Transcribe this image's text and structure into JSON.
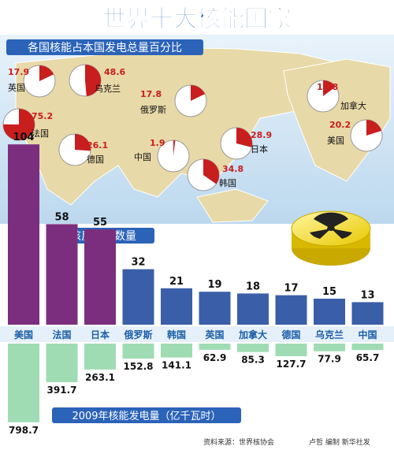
{
  "title": "世界十大核能国家",
  "share_section": {
    "title": "各国核能占本国发电总量百分比",
    "items": [
      {
        "country": "英国",
        "value": 17.9
      },
      {
        "country": "乌克兰",
        "value": 48.6
      },
      {
        "country": "俄罗斯",
        "value": 17.8
      },
      {
        "country": "加拿大",
        "value": 14.8
      },
      {
        "country": "法国",
        "value": 75.2
      },
      {
        "country": "德国",
        "value": 26.1
      },
      {
        "country": "中国",
        "value": 1.9
      },
      {
        "country": "日本",
        "value": 28.9
      },
      {
        "country": "韩国",
        "value": 34.8
      },
      {
        "country": "美国",
        "value": 20.2
      }
    ]
  },
  "chart_data": [
    {
      "type": "bar",
      "title": "核反应堆数量",
      "categories": [
        "美国",
        "法国",
        "日本",
        "俄罗斯",
        "韩国",
        "英国",
        "加拿大",
        "德国",
        "乌克兰",
        "中国"
      ],
      "values": [
        104,
        58,
        55,
        32,
        21,
        19,
        18,
        17,
        15,
        13
      ]
    },
    {
      "type": "bar",
      "title": "2009年核能发电量（亿千瓦时）",
      "categories": [
        "美国",
        "法国",
        "日本",
        "俄罗斯",
        "韩国",
        "英国",
        "加拿大",
        "德国",
        "乌克兰",
        "中国"
      ],
      "values": [
        798.7,
        391.7,
        263.1,
        152.8,
        141.1,
        62.9,
        85.3,
        127.7,
        77.9,
        65.7
      ]
    }
  ],
  "source": "资料来源：世界核协会",
  "credit": "卢哲 编制 新华社发",
  "colors": {
    "title": "#1a5ea8",
    "banner": "#2b63b8",
    "pie_fill": "#c81e1e",
    "reactor_bars": [
      "#7b2e7e",
      "#7b2e7e",
      "#7b2e7e",
      "#3a5fa8",
      "#3a5fa8",
      "#3a5fa8",
      "#3a5fa8",
      "#3a5fa8",
      "#3a5fa8",
      "#3a5fa8"
    ],
    "generation_bar": "#9fdcb4",
    "label_band": "#e6f0fb",
    "map_land": "#e8d9a8",
    "map_sea": "#bcd8ee"
  }
}
